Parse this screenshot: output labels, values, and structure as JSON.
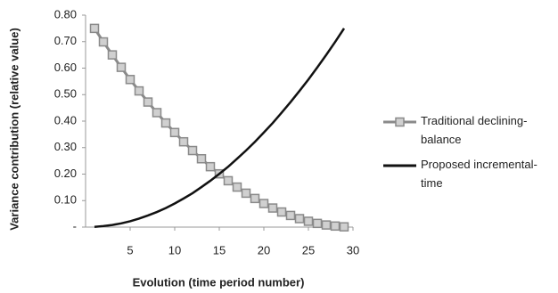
{
  "chart_data": {
    "type": "line",
    "x_label": "Evolution (time period number)",
    "y_label": "Variance contribution (relative value)",
    "x": [
      1,
      2,
      3,
      4,
      5,
      6,
      7,
      8,
      9,
      10,
      11,
      12,
      13,
      14,
      15,
      16,
      17,
      18,
      19,
      20,
      21,
      22,
      23,
      24,
      25,
      26,
      27,
      28,
      29
    ],
    "series": [
      {
        "name": "Traditional declining-balance",
        "color": "#8a8a8a",
        "marker": "square",
        "values": [
          0.75,
          0.699,
          0.65,
          0.603,
          0.557,
          0.514,
          0.472,
          0.432,
          0.393,
          0.357,
          0.322,
          0.289,
          0.258,
          0.228,
          0.201,
          0.175,
          0.151,
          0.128,
          0.108,
          0.089,
          0.072,
          0.057,
          0.044,
          0.032,
          0.022,
          0.014,
          0.008,
          0.004,
          0.001
        ]
      },
      {
        "name": "Proposed incremental-time",
        "color": "#111111",
        "values": [
          0.001,
          0.004,
          0.008,
          0.014,
          0.022,
          0.032,
          0.044,
          0.057,
          0.072,
          0.089,
          0.108,
          0.128,
          0.151,
          0.175,
          0.201,
          0.228,
          0.258,
          0.289,
          0.322,
          0.357,
          0.393,
          0.432,
          0.472,
          0.514,
          0.557,
          0.603,
          0.65,
          0.699,
          0.75
        ]
      }
    ],
    "xlim": [
      0,
      30
    ],
    "xticks": [
      5,
      10,
      15,
      20,
      25,
      30
    ],
    "ylim": [
      0,
      0.8
    ],
    "yticks": [
      {
        "value": 0,
        "label": "-"
      },
      {
        "value": 0.1,
        "label": "0.10"
      },
      {
        "value": 0.2,
        "label": "0.20"
      },
      {
        "value": 0.3,
        "label": "0.30"
      },
      {
        "value": 0.4,
        "label": "0.40"
      },
      {
        "value": 0.5,
        "label": "0.50"
      },
      {
        "value": 0.6,
        "label": "0.60"
      },
      {
        "value": 0.7,
        "label": "0.70"
      },
      {
        "value": 0.8,
        "label": "0.80"
      }
    ],
    "legend": "right"
  }
}
